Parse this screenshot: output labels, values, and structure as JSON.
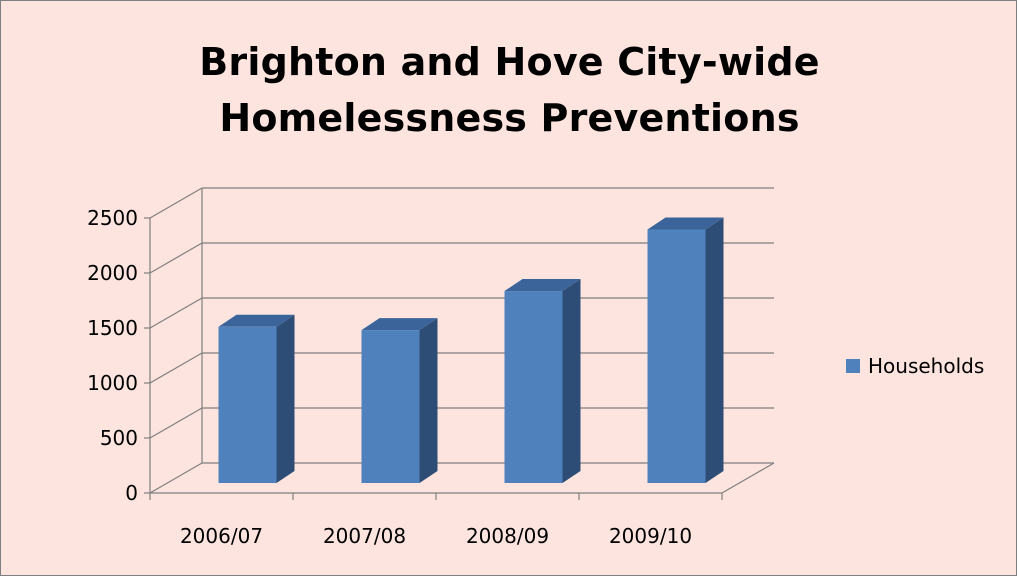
{
  "chart_data": {
    "type": "bar",
    "title_lines": [
      "Brighton and Hove City-wide",
      "Homelessness Preventions"
    ],
    "categories": [
      "2006/07",
      "2007/08",
      "2008/09",
      "2009/10"
    ],
    "series": [
      {
        "name": "Households",
        "values": [
          1420,
          1390,
          1745,
          2305
        ],
        "color": "#4f81bd"
      }
    ],
    "y_ticks": [
      "0",
      "500",
      "1000",
      "1500",
      "2000",
      "2500"
    ],
    "ylim": [
      0,
      2500
    ],
    "gridlines": true,
    "legend_position": "right",
    "style": "3d-column"
  }
}
